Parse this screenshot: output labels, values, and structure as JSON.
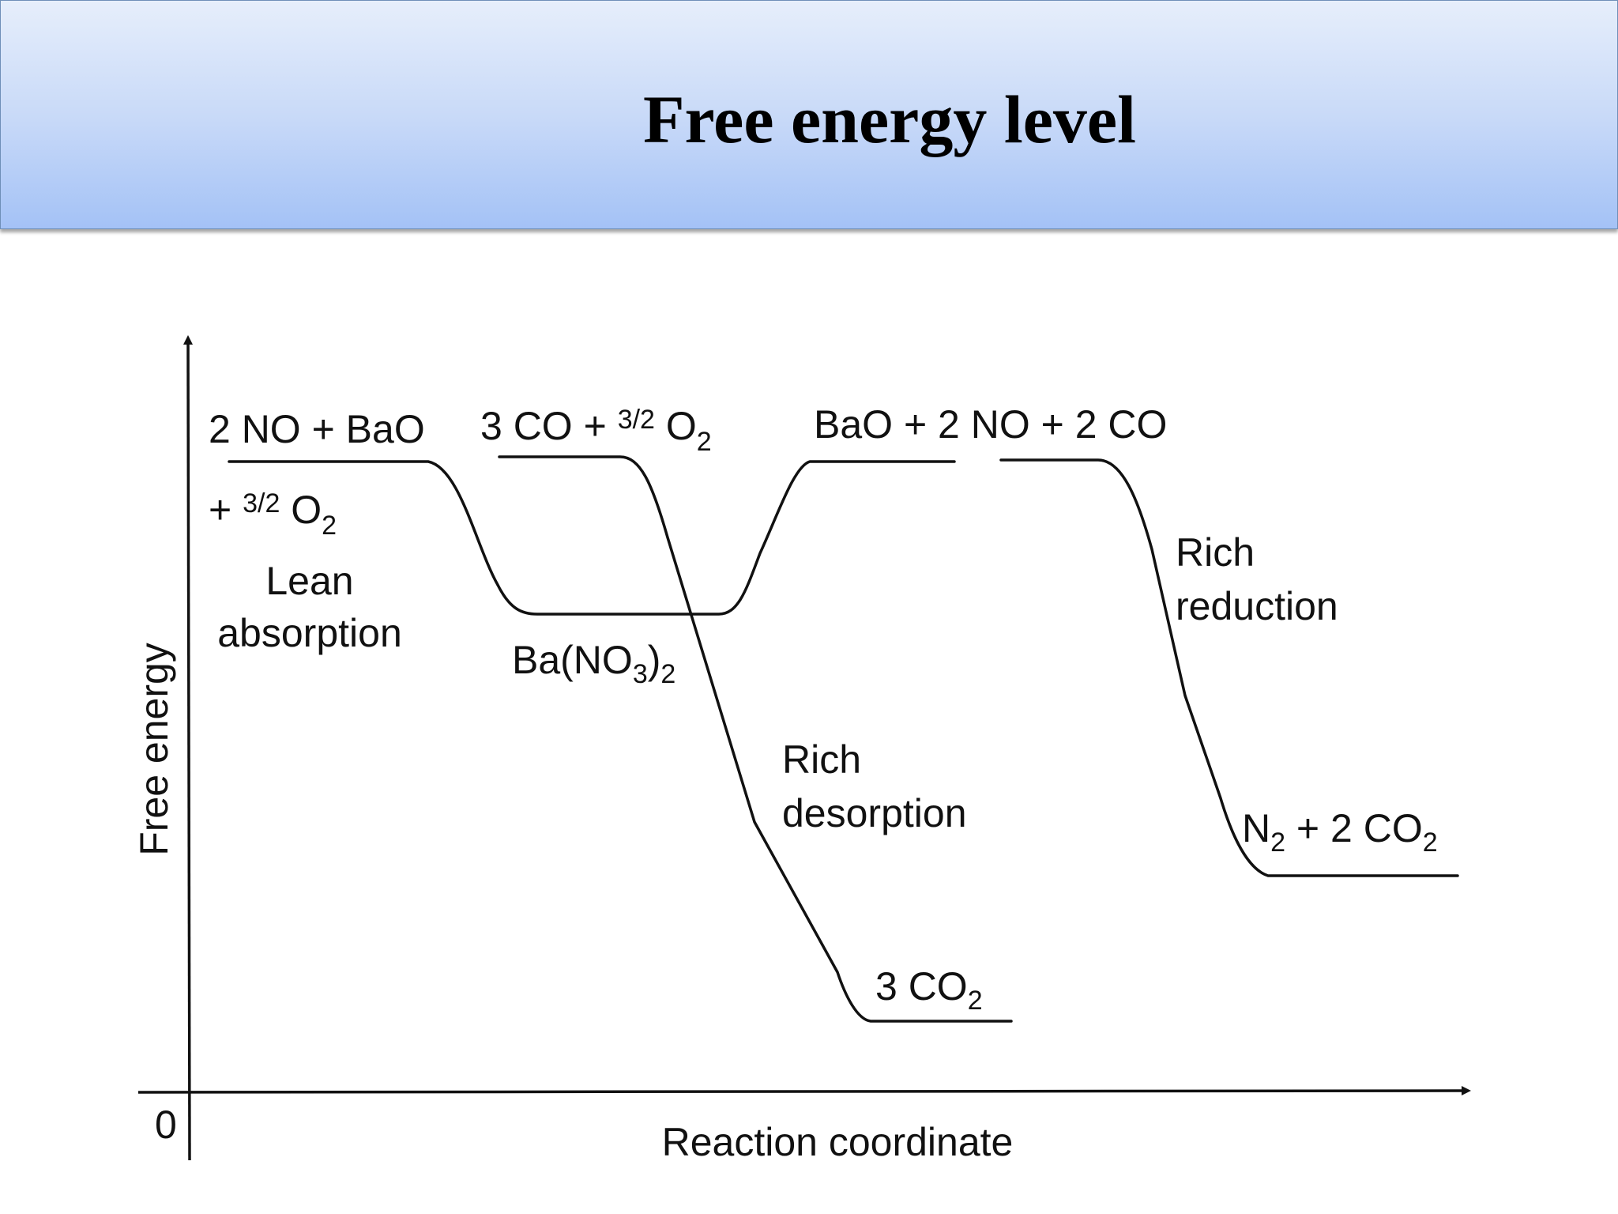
{
  "title": "Free energy level",
  "axes": {
    "y_label": "Free energy",
    "x_label": "Reaction coordinate",
    "origin_label": "0"
  },
  "levels": {
    "lean_start": {
      "line1": "2 NO + BaO",
      "line2_prefix": "+ ",
      "line2_frac": "3/2",
      "line2_species": " O",
      "line2_sub": "2"
    },
    "desorption_start": {
      "prefix": "3 CO + ",
      "frac": "3/2",
      "species": " O",
      "sub": "2"
    },
    "nitrate": {
      "pre": "Ba(NO",
      "sub": "3",
      "post": ")",
      "sub2": "2"
    },
    "middle_high": "BaO + 2 NO + 2 CO",
    "co2": {
      "pre": "3 CO",
      "sub": "2"
    },
    "n2": {
      "pre": "N",
      "sub": "2",
      "mid": " + 2 CO",
      "sub2": "2"
    }
  },
  "steps": {
    "lean": {
      "line1": "Lean",
      "line2": "absorption"
    },
    "rich_desorption": {
      "line1": "Rich",
      "line2": "desorption"
    },
    "rich_reduction": {
      "line1": "Rich",
      "line2": "reduction"
    }
  }
}
